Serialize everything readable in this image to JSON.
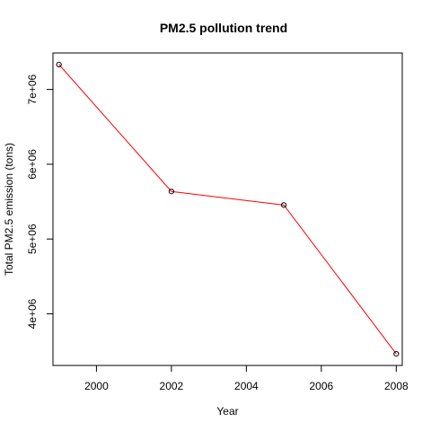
{
  "chart_data": {
    "type": "line",
    "title": "PM2.5 pollution trend",
    "xlabel": "Year",
    "ylabel": "Total PM2.5 emission (tons)",
    "x": [
      1999,
      2002,
      2005,
      2008
    ],
    "series": [
      {
        "values": [
          7332967,
          5635780,
          5454703,
          3464206
        ]
      }
    ],
    "xticks": [
      2000,
      2002,
      2004,
      2006,
      2008
    ],
    "xtick_labels": [
      "2000",
      "2002",
      "2004",
      "2006",
      "2008"
    ],
    "yticks": [
      4000000,
      5000000,
      6000000,
      7000000
    ],
    "ytick_labels": [
      "4e+06",
      "5e+06",
      "6e+06",
      "7e+06"
    ],
    "xlim": [
      1998.84,
      2008.16
    ],
    "ylim": [
      3309455,
      7487718
    ],
    "line_color": "#FF0000",
    "marker": "open-circle",
    "grid": false,
    "legend": "none"
  }
}
